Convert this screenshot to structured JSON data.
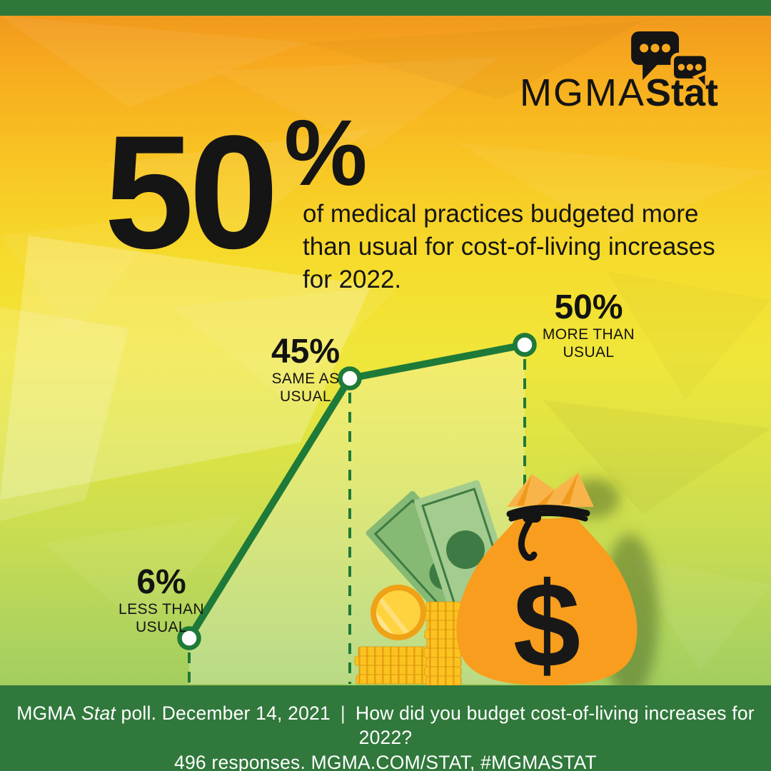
{
  "logo": {
    "brand": "MGMA",
    "brand_suffix": "Stat",
    "bubble_color": "#141414",
    "bubble_dot_color": "#F7A81E"
  },
  "headline": {
    "value": "50",
    "percent": "%",
    "description_lines": [
      "of medical practices budgeted more",
      "than usual for cost-of-living increases",
      "for 2022."
    ]
  },
  "chart_data": {
    "type": "line",
    "title": "How did you budget cost-of-living increases for 2022?",
    "categories": [
      "Less than usual",
      "Same as usual",
      "More than usual"
    ],
    "values": [
      6,
      45,
      50
    ],
    "unit": "%",
    "ylim": [
      0,
      55
    ],
    "grid": "none",
    "legend": "none",
    "line_color": "#1E7A38",
    "marker_fill": "#FFFFFF",
    "marker_ring": "#1E7A38",
    "area_fill": "rgba(255,255,255,0.25)",
    "points": [
      {
        "value": "6%",
        "caption_line1": "LESS THAN",
        "caption_line2": "USUAL"
      },
      {
        "value": "45%",
        "caption_line1": "SAME AS",
        "caption_line2": "USUAL"
      },
      {
        "value": "50%",
        "caption_line1": "MORE THAN",
        "caption_line2": "USUAL"
      }
    ]
  },
  "illustration": {
    "currency_symbol": "$",
    "bag_color": "#F89D1D",
    "coin_color": "#FBC31F",
    "bill_color": "#A3CC8E"
  },
  "footer": {
    "brand": "MGMA",
    "brand_italic": "Stat",
    "poll_info": "poll. December 14, 2021",
    "separator": "|",
    "question": "How did you budget cost-of-living increases for 2022?",
    "responses_line": "496 responses. MGMA.COM/STAT, #MGMASTAT"
  },
  "colors": {
    "band_green": "#2E7839",
    "footer_green": "#30783B",
    "chart_green": "#1E7A38",
    "bg_top": "#F0941C",
    "bg_bottom": "#8FC45C",
    "text_black": "#151515",
    "footer_text": "#FFFFFF"
  }
}
